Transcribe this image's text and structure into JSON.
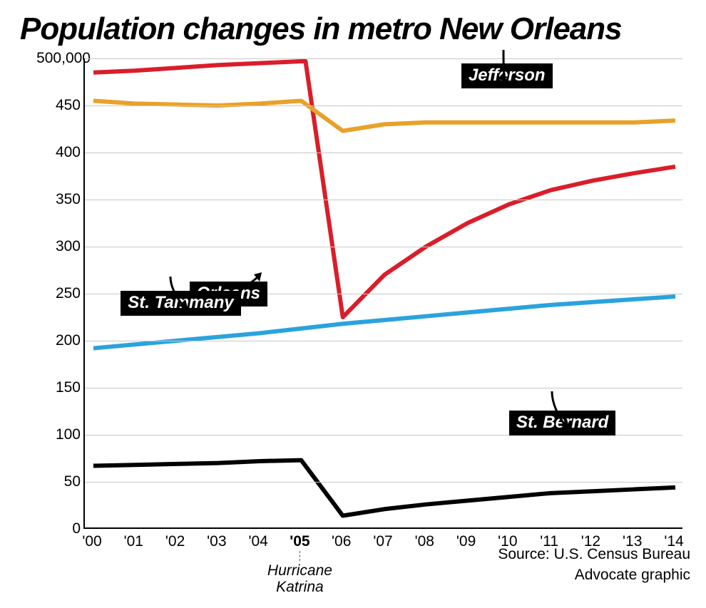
{
  "title": "Population changes in metro New Orleans",
  "chart": {
    "type": "line",
    "background_color": "#ffffff",
    "grid_color": "#c8c8c8",
    "title_fontsize": 44,
    "axis_fontsize": 21,
    "label_fontsize": 24,
    "callout_fontsize": 21,
    "source_fontsize": 21,
    "ylim": [
      0,
      500000
    ],
    "ytick_step": 50000,
    "y_ticks": [
      {
        "v": 0,
        "label": "0"
      },
      {
        "v": 50000,
        "label": "50"
      },
      {
        "v": 100000,
        "label": "100"
      },
      {
        "v": 150000,
        "label": "150"
      },
      {
        "v": 200000,
        "label": "200"
      },
      {
        "v": 250000,
        "label": "250"
      },
      {
        "v": 300000,
        "label": "300"
      },
      {
        "v": 350000,
        "label": "350"
      },
      {
        "v": 400000,
        "label": "400"
      },
      {
        "v": 450000,
        "label": "450"
      },
      {
        "v": 500000,
        "label": "500,000"
      }
    ],
    "x_years": [
      2000,
      2001,
      2002,
      2003,
      2004,
      2005,
      2006,
      2007,
      2008,
      2009,
      2010,
      2011,
      2012,
      2013,
      2014
    ],
    "x_labels": [
      "'00",
      "'01",
      "'02",
      "'03",
      "'04",
      "'05",
      "'06",
      "'07",
      "'08",
      "'09",
      "'10",
      "'11",
      "'12",
      "'13",
      "'14"
    ],
    "x_highlight_index": 5,
    "line_width": 6,
    "series": [
      {
        "name": "Orleans",
        "color": "#d91e2a",
        "values": [
          485000,
          487000,
          490000,
          493000,
          495000,
          497000,
          225000,
          270000,
          300000,
          325000,
          345000,
          360000,
          370000,
          378000,
          385000
        ],
        "drop_index": 5,
        "label_pos": {
          "left_pct": 17.5,
          "top_pct": 47.5
        },
        "pointer": {
          "from": "right",
          "dx": 68,
          "dy": -42
        }
      },
      {
        "name": "Jefferson",
        "color": "#e8a12a",
        "values": [
          455000,
          452000,
          451000,
          450000,
          452000,
          455000,
          423000,
          430000,
          432000,
          432000,
          432000,
          432000,
          432000,
          432000,
          434000
        ],
        "label_pos": {
          "left_pct": 63,
          "top_pct": 1
        },
        "pointer": {
          "from": "bottom",
          "dx": 10,
          "dy": 44
        }
      },
      {
        "name": "St. Tammany",
        "color": "#2aa3dd",
        "values": [
          192000,
          196000,
          200000,
          204000,
          208000,
          213000,
          218000,
          222000,
          226000,
          230000,
          234000,
          238000,
          241000,
          244000,
          247000
        ],
        "label_pos": {
          "left_pct": 6,
          "top_pct": 49.5
        },
        "pointer": {
          "from": "bottom",
          "dx": 30,
          "dy": 45
        }
      },
      {
        "name": "St. Bernard",
        "color": "#000000",
        "values": [
          67000,
          68000,
          69000,
          70000,
          72000,
          73000,
          14000,
          21000,
          26000,
          30000,
          34000,
          38000,
          40000,
          42000,
          44000
        ],
        "label_pos": {
          "left_pct": 71,
          "top_pct": 75
        },
        "pointer": {
          "from": "bottom",
          "dx": 30,
          "dy": 52
        }
      }
    ],
    "callout": {
      "year_index": 5,
      "text_line1": "Hurricane",
      "text_line2": "Katrina"
    }
  },
  "source": {
    "line1": "Source: U.S. Census Bureau",
    "line2": "Advocate graphic"
  }
}
